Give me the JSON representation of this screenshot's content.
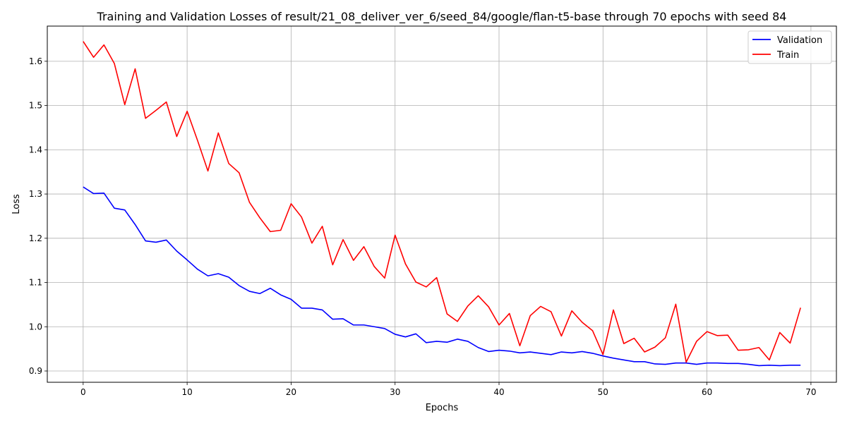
{
  "chart_data": {
    "type": "line",
    "title": "Training and Validation Losses of result/21_08_deliver_ver_6/seed_84/google/flan-t5-base through 70 epochs with seed 84",
    "xlabel": "Epochs",
    "ylabel": "Loss",
    "xlim": [
      -3.45,
      72.45
    ],
    "ylim": [
      0.8745,
      1.6795
    ],
    "x_ticks": [
      0,
      10,
      20,
      30,
      40,
      50,
      60,
      70
    ],
    "y_ticks": [
      0.9,
      1.0,
      1.1,
      1.2,
      1.3,
      1.4,
      1.5,
      1.6
    ],
    "y_tick_labels": [
      "0.9",
      "1.0",
      "1.1",
      "1.2",
      "1.3",
      "1.4",
      "1.5",
      "1.6"
    ],
    "grid": true,
    "legend_position": "top-right",
    "x": [
      0,
      1,
      2,
      3,
      4,
      5,
      6,
      7,
      8,
      9,
      10,
      11,
      12,
      13,
      14,
      15,
      16,
      17,
      18,
      19,
      20,
      21,
      22,
      23,
      24,
      25,
      26,
      27,
      28,
      29,
      30,
      31,
      32,
      33,
      34,
      35,
      36,
      37,
      38,
      39,
      40,
      41,
      42,
      43,
      44,
      45,
      46,
      47,
      48,
      49,
      50,
      51,
      52,
      53,
      54,
      55,
      56,
      57,
      58,
      59,
      60,
      61,
      62,
      63,
      64,
      65,
      66,
      67,
      68,
      69
    ],
    "series": [
      {
        "name": "Validation",
        "color": "#0000ff",
        "values": [
          1.316,
          1.301,
          1.302,
          1.268,
          1.264,
          1.231,
          1.194,
          1.191,
          1.196,
          1.171,
          1.151,
          1.13,
          1.115,
          1.12,
          1.112,
          1.093,
          1.08,
          1.075,
          1.087,
          1.072,
          1.062,
          1.042,
          1.042,
          1.038,
          1.017,
          1.018,
          1.004,
          1.004,
          1.0,
          0.996,
          0.983,
          0.977,
          0.984,
          0.964,
          0.967,
          0.965,
          0.972,
          0.967,
          0.953,
          0.944,
          0.947,
          0.945,
          0.941,
          0.943,
          0.94,
          0.937,
          0.943,
          0.941,
          0.944,
          0.94,
          0.934,
          0.929,
          0.925,
          0.921,
          0.921,
          0.916,
          0.915,
          0.918,
          0.918,
          0.915,
          0.918,
          0.918,
          0.917,
          0.917,
          0.915,
          0.912,
          0.913,
          0.912,
          0.913,
          0.913
        ]
      },
      {
        "name": "Train",
        "color": "#ff0000",
        "values": [
          1.645,
          1.609,
          1.637,
          1.595,
          1.502,
          1.583,
          1.471,
          1.489,
          1.508,
          1.43,
          1.487,
          1.421,
          1.352,
          1.438,
          1.369,
          1.348,
          1.281,
          1.246,
          1.215,
          1.218,
          1.278,
          1.248,
          1.189,
          1.227,
          1.14,
          1.197,
          1.15,
          1.181,
          1.136,
          1.11,
          1.207,
          1.142,
          1.101,
          1.09,
          1.111,
          1.029,
          1.012,
          1.047,
          1.07,
          1.045,
          1.004,
          1.03,
          0.957,
          1.025,
          1.046,
          1.034,
          0.979,
          1.036,
          1.01,
          0.991,
          0.937,
          1.038,
          0.962,
          0.974,
          0.943,
          0.954,
          0.975,
          1.051,
          0.92,
          0.967,
          0.989,
          0.98,
          0.981,
          0.947,
          0.948,
          0.953,
          0.925,
          0.987,
          0.963,
          1.043
        ]
      }
    ]
  }
}
